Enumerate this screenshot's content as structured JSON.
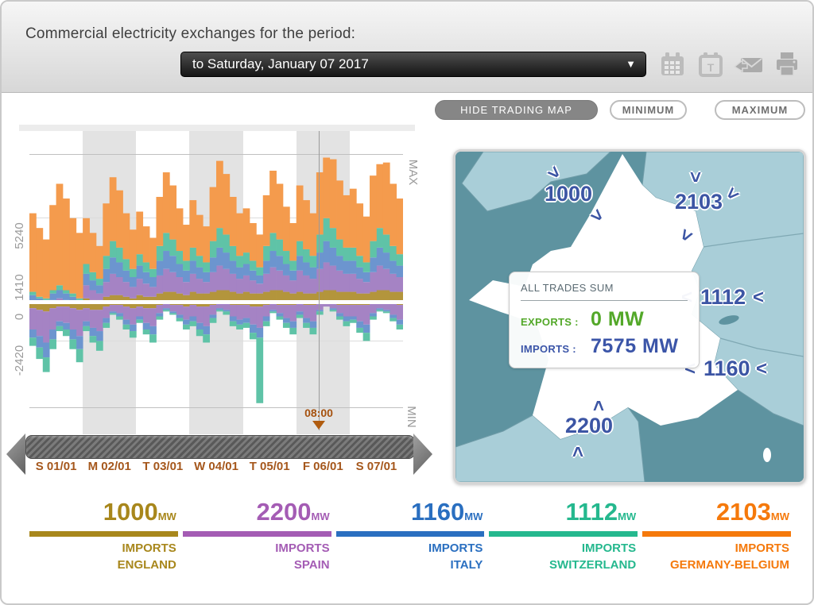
{
  "header": {
    "title": "Commercial electricity exchanges for the period:",
    "period_dropdown": {
      "value": "to Saturday, January 07 2017",
      "caret": "▼"
    },
    "icons": [
      "calendar-icon",
      "calendar-type-icon",
      "send-mail-icon",
      "print-icon"
    ]
  },
  "toolbar": {
    "hide_map_label": "HIDE TRADING MAP",
    "minimum_label": "MINIMUM",
    "maximum_label": "MAXIMUM"
  },
  "chart": {
    "max_label": "MAX",
    "min_label": "MIN",
    "y_axis_labels": {
      "l5240": "5240",
      "l1410": "1410",
      "l0": "0",
      "lm2420": "-2420"
    },
    "cursor_time": "08:00",
    "x_axis_labels": [
      "S 01/01",
      "M 02/01",
      "T 03/01",
      "W 04/01",
      "T 05/01",
      "F 06/01",
      "S 07/01"
    ],
    "shaded_day_indices": [
      1,
      3,
      5
    ],
    "chart_data": {
      "type": "area",
      "subtype": "stacked-step-area, imports above zero line, exports below zero line",
      "x_resolution": "3-hour steps over 7 days (56 points)",
      "y_gridline_values": [
        5240,
        1410,
        0,
        -2420
      ],
      "series": [
        {
          "name": "England",
          "color": "#b3953c",
          "imports": [
            0,
            0,
            0,
            100,
            100,
            100,
            0,
            0,
            300,
            200,
            200,
            400,
            500,
            500,
            400,
            300,
            500,
            400,
            400,
            600,
            700,
            700,
            600,
            500,
            700,
            600,
            600,
            700,
            800,
            800,
            700,
            600,
            700,
            600,
            600,
            700,
            800,
            800,
            700,
            600,
            700,
            600,
            600,
            700,
            800,
            800,
            700,
            700,
            700,
            600,
            600,
            700,
            800,
            800,
            700,
            700
          ],
          "exports": [
            300,
            400,
            500,
            300,
            200,
            200,
            300,
            400,
            300,
            400,
            400,
            200,
            100,
            100,
            200,
            300,
            200,
            300,
            300,
            100,
            0,
            100,
            100,
            200,
            100,
            200,
            200,
            100,
            0,
            0,
            100,
            100,
            100,
            200,
            200,
            100,
            0,
            100,
            100,
            100,
            0,
            100,
            100,
            0,
            0,
            0,
            100,
            100,
            100,
            100,
            100,
            0,
            0,
            0,
            0,
            100
          ]
        },
        {
          "name": "Spain",
          "color": "#a583c4",
          "imports": [
            100,
            0,
            0,
            100,
            200,
            100,
            100,
            0,
            800,
            600,
            400,
            900,
            1300,
            1100,
            900,
            700,
            1000,
            800,
            600,
            1100,
            1400,
            1200,
            1000,
            800,
            1100,
            900,
            700,
            1200,
            1500,
            1300,
            1100,
            900,
            1000,
            800,
            600,
            1100,
            1400,
            1200,
            1000,
            800,
            1300,
            1100,
            900,
            1400,
            1700,
            1500,
            1300,
            1100,
            1100,
            900,
            700,
            1200,
            1500,
            1300,
            1100,
            900
          ],
          "exports": [
            1300,
            1600,
            1900,
            1300,
            900,
            1000,
            1300,
            1600,
            800,
            1100,
            1300,
            700,
            400,
            500,
            800,
            1000,
            600,
            900,
            1100,
            500,
            300,
            400,
            600,
            800,
            700,
            1000,
            1200,
            600,
            300,
            400,
            700,
            900,
            800,
            1100,
            1300,
            700,
            400,
            500,
            800,
            1000,
            500,
            800,
            1000,
            400,
            200,
            300,
            500,
            700,
            700,
            1000,
            1200,
            600,
            300,
            400,
            700,
            900
          ]
        },
        {
          "name": "Italy",
          "color": "#6c95cf",
          "imports": [
            400,
            300,
            200,
            400,
            500,
            400,
            300,
            200,
            700,
            600,
            500,
            800,
            1000,
            900,
            700,
            600,
            800,
            700,
            600,
            900,
            1100,
            1000,
            800,
            700,
            800,
            700,
            600,
            900,
            1100,
            1000,
            800,
            700,
            700,
            600,
            500,
            800,
            1000,
            900,
            700,
            600,
            900,
            800,
            700,
            1000,
            1300,
            1100,
            900,
            800,
            800,
            700,
            600,
            900,
            1100,
            1000,
            800,
            700
          ],
          "exports": [
            500,
            700,
            900,
            600,
            300,
            400,
            600,
            800,
            300,
            500,
            600,
            300,
            100,
            200,
            300,
            400,
            200,
            400,
            500,
            200,
            100,
            100,
            200,
            300,
            300,
            400,
            500,
            200,
            100,
            100,
            300,
            300,
            300,
            500,
            600,
            300,
            100,
            200,
            300,
            400,
            200,
            300,
            400,
            100,
            0,
            100,
            200,
            300,
            200,
            400,
            500,
            200,
            100,
            100,
            200,
            300
          ]
        },
        {
          "name": "Switzerland",
          "color": "#5fc3a7",
          "imports": [
            200,
            100,
            100,
            200,
            300,
            200,
            200,
            100,
            600,
            500,
            400,
            800,
            1000,
            900,
            700,
            500,
            700,
            600,
            500,
            900,
            1100,
            1000,
            800,
            600,
            800,
            700,
            600,
            1000,
            1200,
            1100,
            900,
            700,
            700,
            600,
            500,
            900,
            1100,
            1000,
            800,
            600,
            900,
            800,
            700,
            1100,
            1400,
            1200,
            1000,
            800,
            800,
            700,
            600,
            1000,
            1200,
            1100,
            900,
            700
          ],
          "exports": [
            500,
            700,
            900,
            600,
            300,
            400,
            600,
            800,
            300,
            400,
            600,
            300,
            100,
            200,
            300,
            400,
            200,
            300,
            500,
            200,
            100,
            100,
            200,
            300,
            300,
            400,
            500,
            300,
            100,
            200,
            300,
            300,
            300,
            400,
            4000,
            300,
            100,
            200,
            300,
            400,
            200,
            300,
            400,
            200,
            0,
            100,
            200,
            300,
            200,
            300,
            500,
            200,
            100,
            100,
            200,
            300
          ]
        },
        {
          "name": "Germany-Belgium",
          "color": "#f49b4d",
          "imports": [
            4800,
            4200,
            3600,
            5200,
            6200,
            5600,
            4600,
            4000,
            2800,
            2400,
            2000,
            3200,
            3900,
            3500,
            2800,
            2400,
            2600,
            2200,
            1900,
            3000,
            3700,
            3300,
            2600,
            2200,
            2900,
            2500,
            2200,
            3300,
            4100,
            3700,
            3000,
            2600,
            2700,
            2300,
            2000,
            3100,
            3800,
            3400,
            2700,
            2300,
            3400,
            3000,
            2600,
            3800,
            3700,
            4200,
            3600,
            3200,
            3600,
            3200,
            2800,
            4000,
            3900,
            4400,
            3800,
            3400
          ],
          "exports": [
            0,
            0,
            0,
            0,
            0,
            0,
            0,
            0,
            0,
            0,
            0,
            0,
            0,
            0,
            0,
            0,
            0,
            0,
            0,
            0,
            0,
            0,
            0,
            0,
            0,
            0,
            0,
            0,
            0,
            0,
            0,
            0,
            0,
            0,
            0,
            0,
            0,
            0,
            0,
            0,
            0,
            0,
            0,
            0,
            0,
            0,
            0,
            0,
            0,
            0,
            0,
            0,
            0,
            0,
            0,
            0
          ]
        }
      ]
    }
  },
  "map": {
    "sea_color": "#5e93a0",
    "neighbor_color": "#a9ced8",
    "france_color": "#ffffff",
    "value_color": "#3c55a4",
    "trades": [
      {
        "country": "England",
        "value": "1000"
      },
      {
        "country": "Germany-Belgium",
        "value": "2103"
      },
      {
        "country": "Switzerland",
        "value": "1112"
      },
      {
        "country": "Italy",
        "value": "1160"
      },
      {
        "country": "Spain",
        "value": "2200"
      }
    ],
    "all_trades_sum": {
      "title": "ALL TRADES SUM",
      "exports_label": "EXPORTS :",
      "exports_value": "0 MW",
      "imports_label": "IMPORTS :",
      "imports_value": "7575 MW",
      "exports_color": "#53a829",
      "imports_color": "#3b55a8"
    }
  },
  "legend": {
    "items": [
      {
        "value": "1000",
        "unit": "MW",
        "line1": "IMPORTS",
        "line2": "ENGLAND",
        "color": "#a8871c"
      },
      {
        "value": "2200",
        "unit": "MW",
        "line1": "IMPORTS",
        "line2": "SPAIN",
        "color": "#a45cb4"
      },
      {
        "value": "1160",
        "unit": "MW",
        "line1": "IMPORTS",
        "line2": "ITALY",
        "color": "#2a6fc0"
      },
      {
        "value": "1112",
        "unit": "MW",
        "line1": "IMPORTS",
        "line2": "SWITZERLAND",
        "color": "#25b88e"
      },
      {
        "value": "2103",
        "unit": "MW",
        "line1": "IMPORTS",
        "line2": "GERMANY-BELGIUM",
        "color": "#f5790b"
      }
    ]
  }
}
